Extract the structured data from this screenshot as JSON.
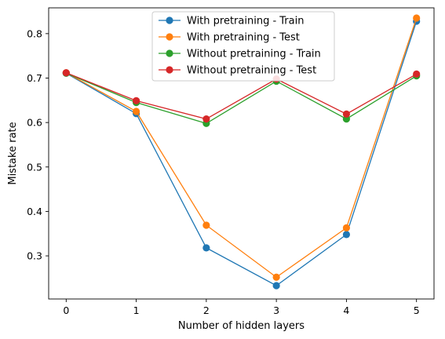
{
  "chart_data": {
    "type": "line",
    "title": "",
    "xlabel": "Number of hidden layers",
    "ylabel": "Mistake rate",
    "x": [
      0,
      1,
      2,
      3,
      4,
      5
    ],
    "x_ticks": [
      "0",
      "1",
      "2",
      "3",
      "4",
      "5"
    ],
    "y_ticks": [
      "0.3",
      "0.4",
      "0.5",
      "0.6",
      "0.7",
      "0.8"
    ],
    "xlim": [
      -0.25,
      5.25
    ],
    "ylim": [
      0.203,
      0.858
    ],
    "grid": false,
    "legend_position": "top-center",
    "series": [
      {
        "name": "With pretraining - Train",
        "color": "#1f77b4",
        "values": [
          0.711,
          0.62,
          0.318,
          0.233,
          0.348,
          0.828
        ]
      },
      {
        "name": "With pretraining - Test",
        "color": "#ff7f0e",
        "values": [
          0.712,
          0.625,
          0.369,
          0.252,
          0.363,
          0.835
        ]
      },
      {
        "name": "Without pretraining - Train",
        "color": "#2ca02c",
        "values": [
          0.711,
          0.645,
          0.598,
          0.693,
          0.608,
          0.705
        ]
      },
      {
        "name": "Without pretraining - Test",
        "color": "#d62728",
        "values": [
          0.712,
          0.649,
          0.608,
          0.698,
          0.619,
          0.709
        ]
      }
    ]
  }
}
